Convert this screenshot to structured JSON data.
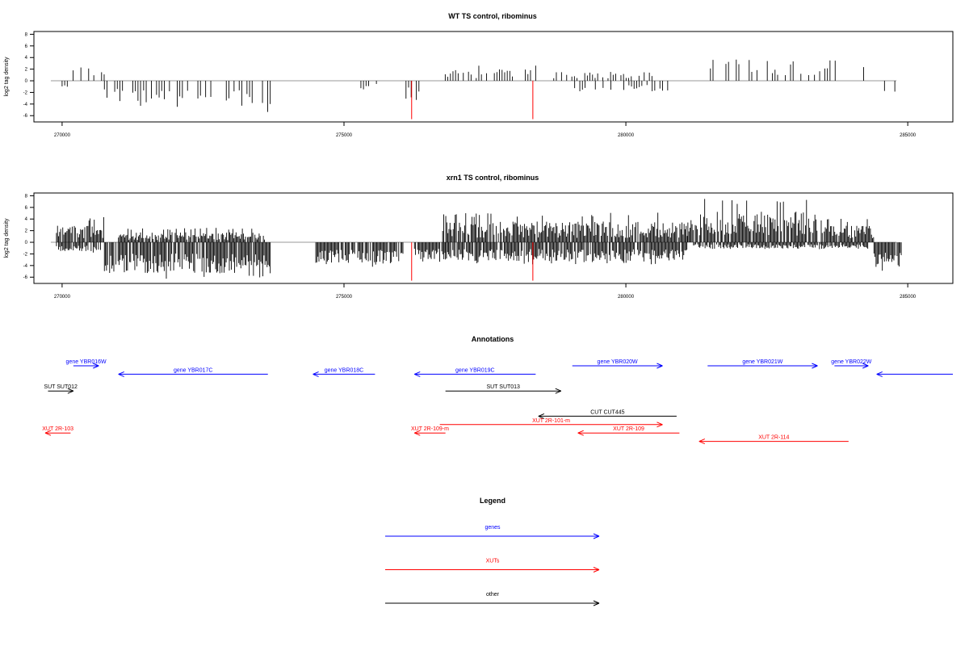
{
  "colors": {
    "genes": "#0000ff",
    "xuts": "#ff0000",
    "other": "#000000",
    "axis": "#000000",
    "zero_line": "#9a9a9a"
  },
  "chart_data": [
    {
      "type": "bar",
      "title": "WT TS control, ribominus",
      "ylabel": "log2 tag density",
      "xlim": [
        269500,
        285800
      ],
      "ylim": [
        -6.8,
        8.2
      ],
      "xticks": [
        "270000",
        "275000",
        "280000",
        "285000"
      ],
      "yticks": [
        "8",
        "6",
        "4",
        "2",
        "0",
        "-2",
        "-4",
        "-6"
      ],
      "zero_line_range": [
        269800,
        284800
      ],
      "density": "sparse",
      "positive_regions": [
        {
          "x": [
            270150,
            270800
          ],
          "max": 3.6
        },
        {
          "x": [
            276750,
            278950
          ],
          "max": 2.9
        },
        {
          "x": [
            278950,
            280600
          ],
          "max": 2.2
        },
        {
          "x": [
            281500,
            283300
          ],
          "max": 5.6
        },
        {
          "x": [
            283300,
            284300
          ],
          "max": 4.0
        }
      ],
      "negative_regions": [
        {
          "x": [
            270000,
            270100
          ],
          "min": -1.2
        },
        {
          "x": [
            270750,
            271400
          ],
          "min": -4.5
        },
        {
          "x": [
            271400,
            273700
          ],
          "min": -5.4
        },
        {
          "x": [
            275300,
            275600
          ],
          "min": -1.8
        },
        {
          "x": [
            276100,
            276350
          ],
          "min": -3.4
        },
        {
          "x": [
            279000,
            280800
          ],
          "min": -2.0
        },
        {
          "x": [
            284450,
            284850
          ],
          "min": -3.8
        }
      ],
      "highlight_bars": [
        {
          "x": 276200,
          "value": -6.6,
          "color": "#ff0000"
        },
        {
          "x": 278350,
          "value": -6.6,
          "color": "#ff0000"
        }
      ]
    },
    {
      "type": "bar",
      "title": "xrn1 TS control, ribominus",
      "ylabel": "log2 tag density",
      "xlim": [
        269500,
        285800
      ],
      "ylim": [
        -6.8,
        8.2
      ],
      "xticks": [
        "270000",
        "275000",
        "280000",
        "285000"
      ],
      "yticks": [
        "8",
        "6",
        "4",
        "2",
        "0",
        "-2",
        "-4",
        "-6"
      ],
      "zero_line_range": [
        269800,
        284800
      ],
      "density": "dense",
      "positive_regions": [
        {
          "x": [
            269900,
            270750
          ],
          "max": 4.4
        },
        {
          "x": [
            271000,
            273600
          ],
          "max": 2.5
        },
        {
          "x": [
            276750,
            281100
          ],
          "max": 5.1
        },
        {
          "x": [
            281100,
            283500
          ],
          "max": 7.6
        },
        {
          "x": [
            283500,
            284400
          ],
          "max": 4.1
        }
      ],
      "negative_regions": [
        {
          "x": [
            269900,
            270700
          ],
          "min": -1.8
        },
        {
          "x": [
            270750,
            273700
          ],
          "min": -6.3
        },
        {
          "x": [
            274500,
            276050
          ],
          "min": -4.3
        },
        {
          "x": [
            276250,
            276800
          ],
          "min": -3.5
        },
        {
          "x": [
            276800,
            281100
          ],
          "min": -3.8
        },
        {
          "x": [
            281200,
            284300
          ],
          "min": -1.2
        },
        {
          "x": [
            284400,
            284900
          ],
          "min": -5.2
        }
      ],
      "highlight_bars": [
        {
          "x": 276200,
          "value": -6.6,
          "color": "#ff0000"
        },
        {
          "x": 278350,
          "value": -6.6,
          "color": "#ff0000"
        }
      ]
    }
  ],
  "annotations": {
    "title": "Annotations",
    "tracks": [
      {
        "label": "gene YBR016W",
        "start": 270200,
        "end": 270650,
        "row": 0,
        "kind": "genes"
      },
      {
        "label": "gene YBR017C",
        "start": 273650,
        "end": 271000,
        "row": 1,
        "kind": "genes"
      },
      {
        "label": "gene YBR018C",
        "start": 275550,
        "end": 274450,
        "row": 1,
        "kind": "genes"
      },
      {
        "label": "gene YBR019C",
        "start": 278400,
        "end": 276250,
        "row": 1,
        "kind": "genes"
      },
      {
        "label": "gene YBR020W",
        "start": 279050,
        "end": 280650,
        "row": 0,
        "kind": "genes"
      },
      {
        "label": "gene YBR021W",
        "start": 281450,
        "end": 283400,
        "row": 0,
        "kind": "genes"
      },
      {
        "label": "gene YBR022W",
        "start": 283700,
        "end": 284300,
        "row": 0,
        "kind": "genes"
      },
      {
        "label": "",
        "start": 285800,
        "end": 284450,
        "row": 1,
        "kind": "genes"
      },
      {
        "label": "SUT SUT012",
        "start": 269750,
        "end": 270200,
        "row": 3,
        "kind": "other"
      },
      {
        "label": "SUT SUT013",
        "start": 276800,
        "end": 278850,
        "row": 3,
        "kind": "other"
      },
      {
        "label": "CUT CUT445",
        "start": 280900,
        "end": 278450,
        "row": 6,
        "kind": "other"
      },
      {
        "label": "XUT 2R-103",
        "start": 270150,
        "end": 269700,
        "row": 8,
        "kind": "xuts"
      },
      {
        "label": "XUT 2R-101-m",
        "start": 276700,
        "end": 280650,
        "row": 7,
        "kind": "xuts"
      },
      {
        "label": "XUT 2R-109-m",
        "start": 276800,
        "end": 276250,
        "row": 8,
        "kind": "xuts"
      },
      {
        "label": "XUT 2R-109",
        "start": 280950,
        "end": 279150,
        "row": 8,
        "kind": "xuts"
      },
      {
        "label": "XUT 2R-114",
        "start": 283950,
        "end": 281300,
        "row": 9,
        "kind": "xuts"
      }
    ]
  },
  "legend": {
    "title": "Legend",
    "items": [
      {
        "label": "genes",
        "kind": "genes"
      },
      {
        "label": "XUTs",
        "kind": "xuts"
      },
      {
        "label": "other",
        "kind": "other"
      }
    ]
  }
}
